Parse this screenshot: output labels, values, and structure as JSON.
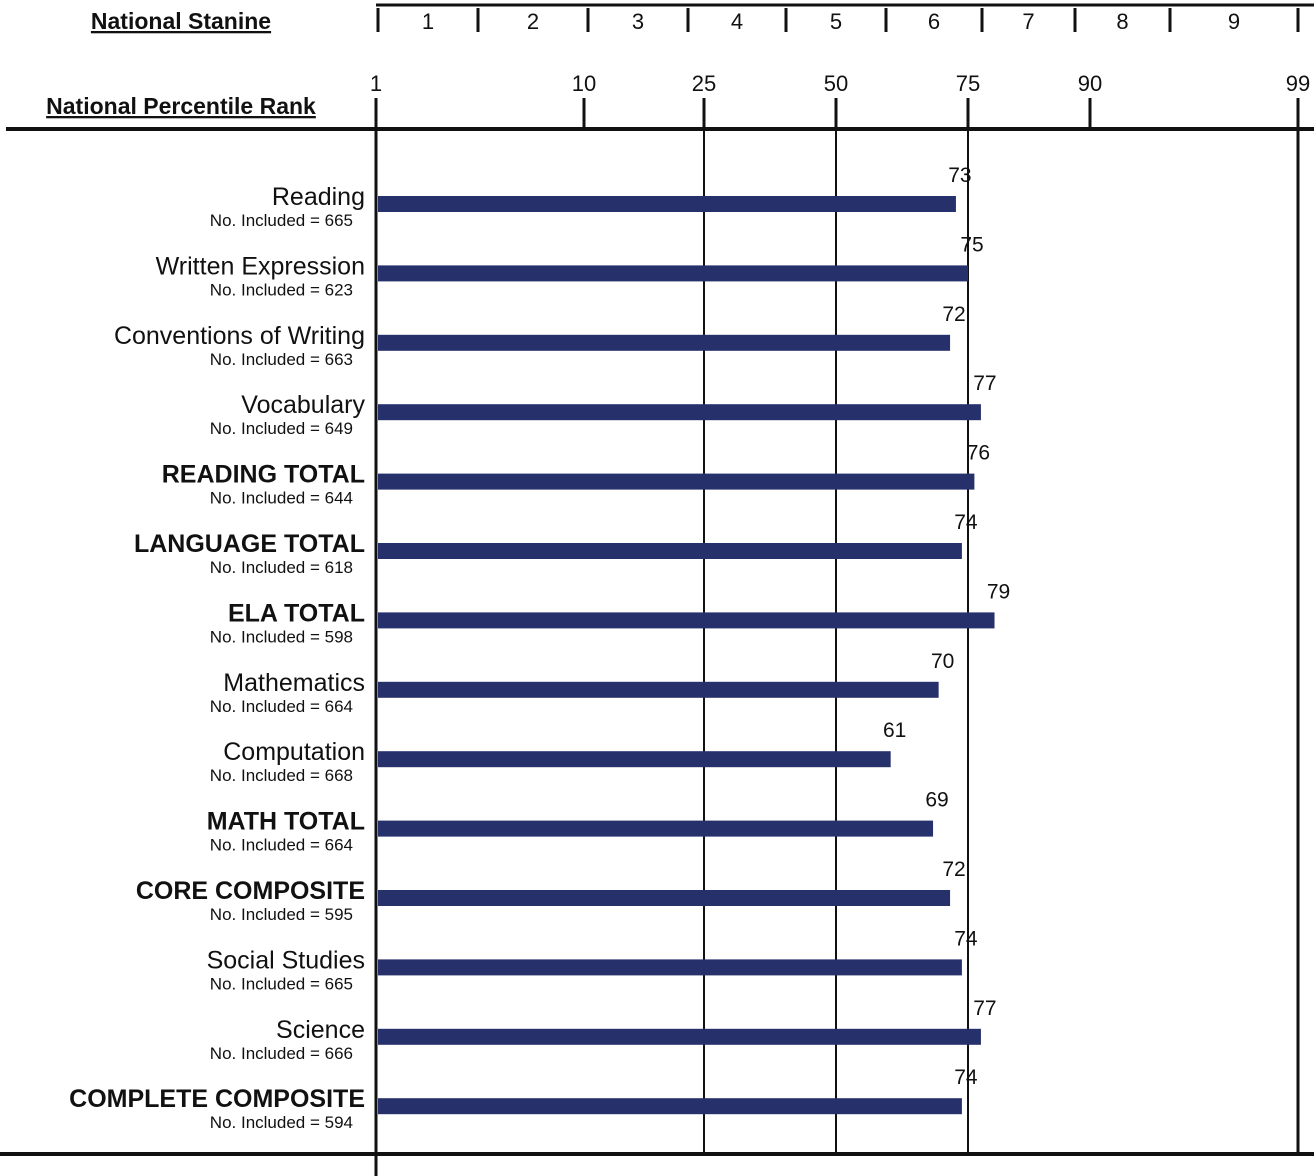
{
  "chart_data": {
    "type": "bar",
    "orientation": "horizontal",
    "stanine_header": "National Stanine",
    "percentile_header": "National Percentile Rank",
    "stanines": [
      "1",
      "2",
      "3",
      "4",
      "5",
      "6",
      "7",
      "8",
      "9"
    ],
    "percentile_ticks": [
      1,
      10,
      25,
      50,
      75,
      90,
      99
    ],
    "xlim": [
      1,
      99
    ],
    "x_scale": "normal-curve",
    "reference_lines": [
      25,
      50,
      75,
      99
    ],
    "bar_color": "#26306a",
    "categories": [
      {
        "label": "Reading",
        "count_text": "No. Included = 665",
        "value": 73,
        "bold": false
      },
      {
        "label": "Written Expression",
        "count_text": "No. Included = 623",
        "value": 75,
        "bold": false
      },
      {
        "label": "Conventions of Writing",
        "count_text": "No. Included = 663",
        "value": 72,
        "bold": false
      },
      {
        "label": "Vocabulary",
        "count_text": "No. Included = 649",
        "value": 77,
        "bold": false
      },
      {
        "label": "READING TOTAL",
        "count_text": "No. Included = 644",
        "value": 76,
        "bold": true
      },
      {
        "label": "LANGUAGE TOTAL",
        "count_text": "No. Included = 618",
        "value": 74,
        "bold": true
      },
      {
        "label": "ELA TOTAL",
        "count_text": "No. Included = 598",
        "value": 79,
        "bold": true
      },
      {
        "label": "Mathematics",
        "count_text": "No. Included = 664",
        "value": 70,
        "bold": false
      },
      {
        "label": "Computation",
        "count_text": "No. Included = 668",
        "value": 61,
        "bold": false
      },
      {
        "label": "MATH TOTAL",
        "count_text": "No. Included = 664",
        "value": 69,
        "bold": true
      },
      {
        "label": "CORE COMPOSITE",
        "count_text": "No. Included = 595",
        "value": 72,
        "bold": true
      },
      {
        "label": "Social Studies",
        "count_text": "No. Included = 665",
        "value": 74,
        "bold": false
      },
      {
        "label": "Science",
        "count_text": "No. Included = 666",
        "value": 77,
        "bold": false
      },
      {
        "label": "COMPLETE COMPOSITE",
        "count_text": "No. Included = 594",
        "value": 74,
        "bold": true
      }
    ]
  }
}
